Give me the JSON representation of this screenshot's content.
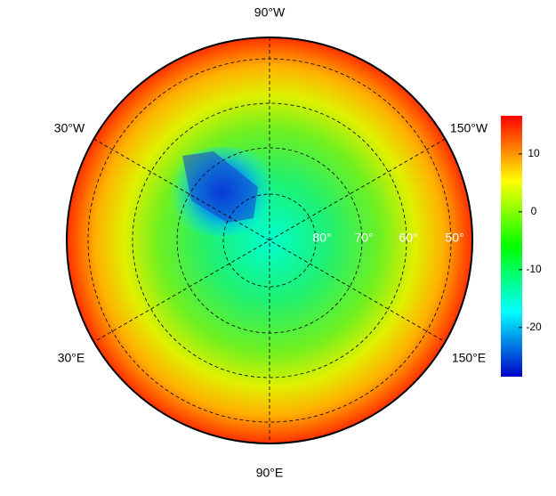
{
  "map": {
    "lon_labels": [
      "90°W",
      "30°W",
      "150°W",
      "30°E",
      "150°E",
      "90°E"
    ],
    "lat_labels": [
      "80°",
      "70°",
      "60°",
      "50°"
    ],
    "colorbar": {
      "lim": [
        -28.5,
        16.6
      ],
      "ticks": [
        10,
        0,
        -10,
        -20
      ],
      "colormap": [
        "#0000c8",
        "#00ffff",
        "#00ff00",
        "#ffff00",
        "#ff0000"
      ]
    }
  }
}
